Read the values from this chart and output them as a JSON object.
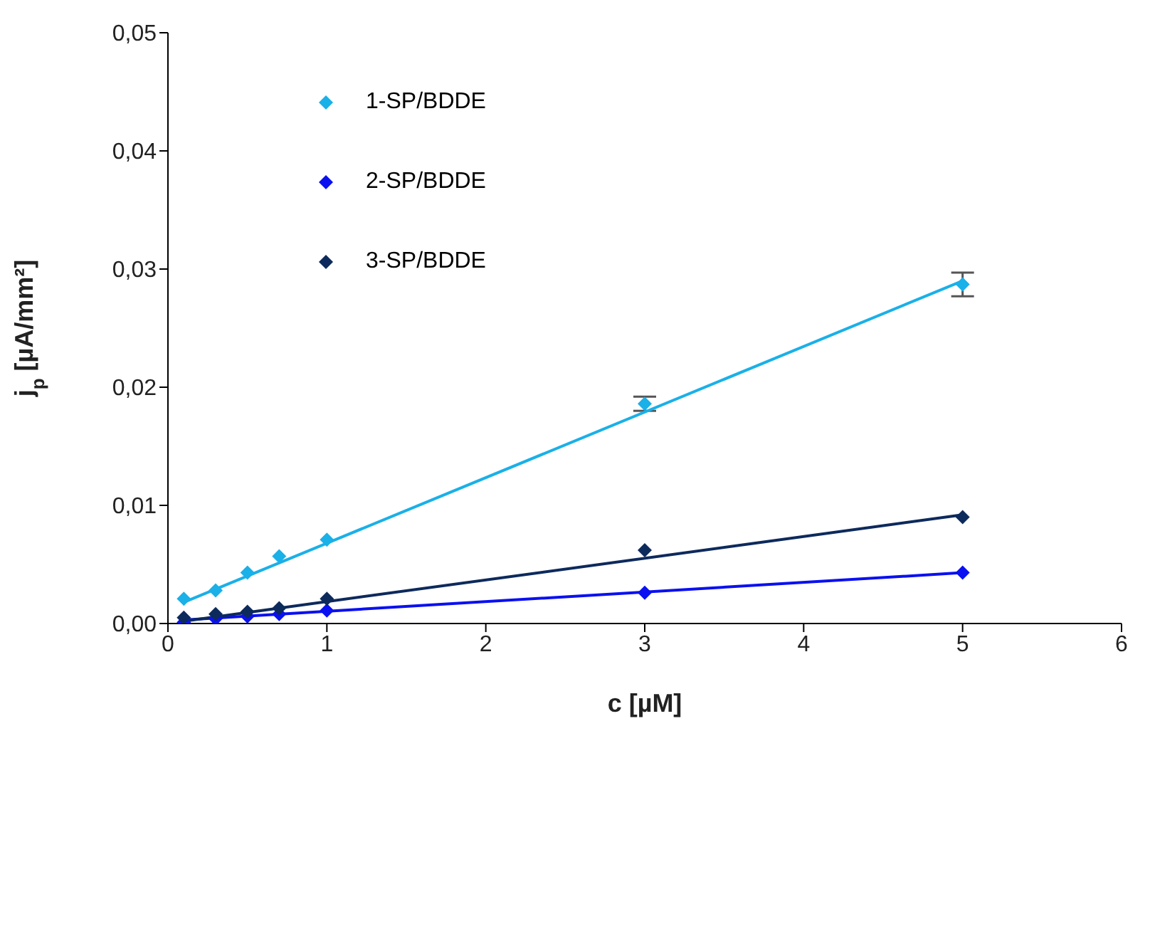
{
  "chart_data": {
    "type": "scatter",
    "xlabel": "c [µM]",
    "ylabel": "j$_{p}$ [µA/mm²]",
    "xlim": [
      0,
      6
    ],
    "xticks": [
      0,
      1,
      2,
      3,
      4,
      5,
      6
    ],
    "ylim": [
      0,
      0.05
    ],
    "yticks": [
      {
        "value": 0,
        "label": "0,00"
      },
      {
        "value": 0.01,
        "label": "0,01"
      },
      {
        "value": 0.02,
        "label": "0,02"
      },
      {
        "value": 0.03,
        "label": "0,03"
      },
      {
        "value": 0.04,
        "label": "0,04"
      },
      {
        "value": 0.05,
        "label": "0,05"
      }
    ],
    "grid": false,
    "legend": "top left",
    "marker": "diamond",
    "series": [
      {
        "name": "1-SP/BDDE",
        "color": "#1ab0e8",
        "x": [
          0.1,
          0.3,
          0.5,
          0.7,
          1,
          3,
          5
        ],
        "values": [
          0.0021,
          0.0028,
          0.0043,
          0.0057,
          0.0071,
          0.0186,
          0.0287
        ],
        "errors": [
          null,
          null,
          null,
          null,
          null,
          0.0006,
          0.001
        ]
      },
      {
        "name": "2-SP/BDDE",
        "color": "#0a10f0",
        "x": [
          0.1,
          0.3,
          0.5,
          0.7,
          1,
          3,
          5
        ],
        "values": [
          0.0001,
          0.0004,
          0.0006,
          0.0008,
          0.0011,
          0.0026,
          0.0043
        ]
      },
      {
        "name": "3-SP/BDDE",
        "color": "#0d2a5c",
        "x": [
          0.1,
          0.3,
          0.5,
          0.7,
          1,
          3,
          5
        ],
        "values": [
          0.0005,
          0.0008,
          0.001,
          0.0013,
          0.0021,
          0.0062,
          0.009
        ]
      },
      {
        "type": "line",
        "marker": "none",
        "color": "#1ab0e8",
        "x": [
          0.1,
          5
        ],
        "values": [
          0.0018,
          0.029
        ]
      },
      {
        "type": "line",
        "marker": "none",
        "color": "#0a10f0",
        "x": [
          0.1,
          5
        ],
        "values": [
          0.0003,
          0.0043
        ]
      },
      {
        "type": "line",
        "marker": "none",
        "color": "#0d2a5c",
        "x": [
          0.1,
          5
        ],
        "values": [
          0.0002,
          0.0092
        ]
      }
    ]
  }
}
